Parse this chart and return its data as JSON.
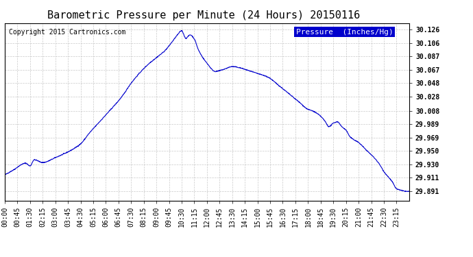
{
  "title": "Barometric Pressure per Minute (24 Hours) 20150116",
  "copyright": "Copyright 2015 Cartronics.com",
  "legend_label": "Pressure  (Inches/Hg)",
  "background_color": "#ffffff",
  "plot_bg_color": "#ffffff",
  "line_color": "#0000cc",
  "grid_color": "#bbbbbb",
  "yticks": [
    29.891,
    29.911,
    29.93,
    29.95,
    29.969,
    29.989,
    30.008,
    30.028,
    30.048,
    30.067,
    30.087,
    30.106,
    30.126
  ],
  "ytick_labels": [
    "29.891",
    "29.911",
    "29.930",
    "29.950",
    "29.969",
    "29.989",
    "30.008",
    "30.028",
    "30.048",
    "30.067",
    "30.087",
    "30.106",
    "30.126"
  ],
  "ylim": [
    29.878,
    30.135
  ],
  "xtick_labels": [
    "00:00",
    "00:45",
    "01:30",
    "02:15",
    "03:00",
    "03:45",
    "04:30",
    "05:15",
    "06:00",
    "06:45",
    "07:30",
    "08:15",
    "09:00",
    "09:45",
    "10:30",
    "11:15",
    "12:00",
    "12:45",
    "13:30",
    "14:15",
    "15:00",
    "15:45",
    "16:30",
    "17:15",
    "18:00",
    "18:45",
    "19:30",
    "20:15",
    "21:00",
    "21:45",
    "22:30",
    "23:15"
  ],
  "title_fontsize": 11,
  "copyright_fontsize": 7,
  "tick_fontsize": 7,
  "legend_fontsize": 8,
  "anchors_min": [
    0,
    30,
    75,
    90,
    105,
    135,
    180,
    270,
    300,
    360,
    420,
    450,
    510,
    540,
    570,
    600,
    615,
    630,
    645,
    660,
    675,
    690,
    720,
    750,
    780,
    810,
    840,
    855,
    900,
    930,
    945,
    960,
    1020,
    1050,
    1080,
    1095,
    1125,
    1140,
    1155,
    1170,
    1185,
    1200,
    1215,
    1230,
    1260,
    1290,
    1320,
    1335,
    1350,
    1380,
    1395,
    1440
  ],
  "anchors_val": [
    29.915,
    29.922,
    29.932,
    29.928,
    29.937,
    29.933,
    29.94,
    29.96,
    29.975,
    30.002,
    30.03,
    30.048,
    30.075,
    30.085,
    30.095,
    30.11,
    30.118,
    30.124,
    30.113,
    30.118,
    30.112,
    30.096,
    30.077,
    30.065,
    30.068,
    30.072,
    30.07,
    30.068,
    30.062,
    30.058,
    30.055,
    30.05,
    30.03,
    30.02,
    30.01,
    30.008,
    30.0,
    29.993,
    29.985,
    29.99,
    29.992,
    29.985,
    29.98,
    29.97,
    29.962,
    29.95,
    29.938,
    29.93,
    29.92,
    29.905,
    29.895,
    29.891
  ]
}
